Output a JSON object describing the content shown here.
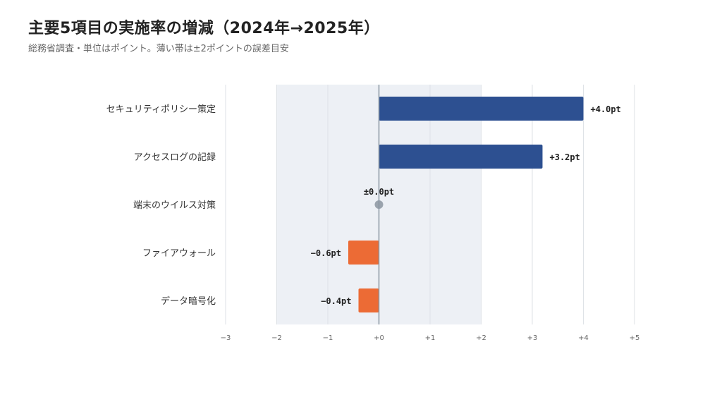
{
  "header": {
    "title": "主要5項目の実施率の増減（2024年→2025年）",
    "subtitle": "総務省調査・単位はポイント。薄い帯は±2ポイントの誤差目安"
  },
  "colors": {
    "positive": "#2d5091",
    "negative": "#ec6b35",
    "zero": "#9aa3ad",
    "band": "#edf0f5",
    "grid": "#dde1e6",
    "zero_line": "#8a96a3"
  },
  "chart_data": {
    "type": "bar",
    "orientation": "horizontal",
    "categories": [
      "セキュリティポリシー策定",
      "アクセスログの記録",
      "端末のウイルス対策",
      "ファイアウォール",
      "データ暗号化"
    ],
    "values": [
      4.0,
      3.2,
      0.0,
      -0.6,
      -0.4
    ],
    "value_labels": [
      "+4.0pt",
      "+3.2pt",
      "±0.0pt",
      "−0.6pt",
      "−0.4pt"
    ],
    "xlim": [
      -3,
      5
    ],
    "xticks": [
      -3,
      -2,
      -1,
      0,
      1,
      2,
      3,
      4,
      5
    ],
    "xtick_labels": [
      "−3",
      "−2",
      "−1",
      "+0",
      "+1",
      "+2",
      "+3",
      "+4",
      "+5"
    ],
    "error_band": [
      -2,
      2
    ],
    "grid": true
  }
}
